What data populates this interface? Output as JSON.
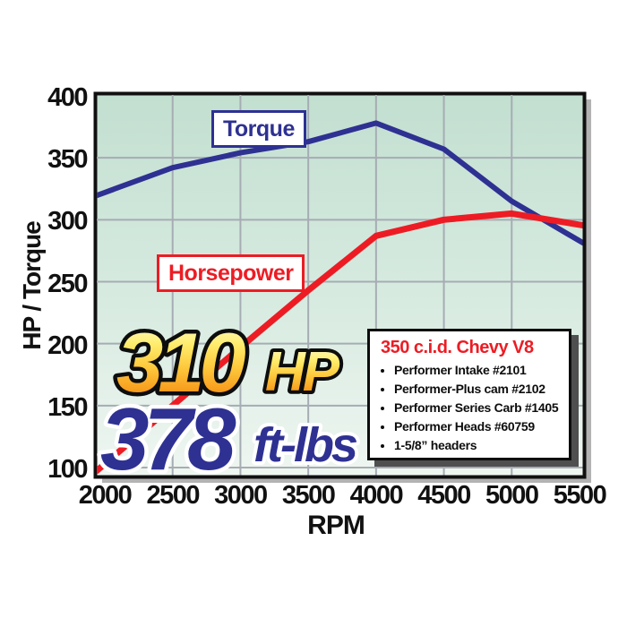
{
  "chart_data": {
    "type": "line",
    "title": "",
    "xlabel": "RPM",
    "ylabel": "HP / Torque",
    "x": [
      2000,
      2500,
      3000,
      3500,
      4000,
      4500,
      5000,
      5500
    ],
    "x_ticks": [
      "2000",
      "2500",
      "3000",
      "3500",
      "4000",
      "4500",
      "5000",
      "5500"
    ],
    "y_ticks": [
      "100",
      "150",
      "200",
      "250",
      "300",
      "350",
      "400"
    ],
    "xlim": [
      2000,
      5500
    ],
    "ylim": [
      100,
      400
    ],
    "grid": true,
    "grid_x": [
      2500,
      3000,
      3500,
      4000,
      4500,
      5000
    ],
    "grid_y": [
      100,
      150,
      200,
      250,
      300,
      350
    ],
    "legend_position": "inline-labels",
    "plot_bg_gradient": [
      "#c2dfd0",
      "#d8ebe1",
      "#eff6f1"
    ],
    "gridline_color": "#a6acb3",
    "series": [
      {
        "name": "Torque",
        "unit": "ft-lbs",
        "color": "#2e3192",
        "values": [
          322,
          342,
          354,
          363,
          378,
          357,
          315,
          283
        ]
      },
      {
        "name": "Horsepower",
        "unit": "HP",
        "color": "#ed1c24",
        "values": [
          103,
          150,
          197,
          243,
          287,
          300,
          305,
          296
        ]
      }
    ]
  },
  "callouts": {
    "hp_value": "310",
    "hp_unit": "HP",
    "hp_gradient": [
      "#fffde8",
      "#ffee6e",
      "#fdc93d",
      "#f89c1c",
      "#f4831f"
    ],
    "torque_value": "378",
    "torque_unit": "ft-lbs",
    "torque_color": "#2e3192"
  },
  "specs": {
    "title": "350 c.i.d. Chevy V8",
    "title_color": "#ed1c24",
    "items": [
      "Performer Intake #2101",
      "Performer-Plus cam #2102",
      "Performer Series Carb #1405",
      "Performer Heads #60759",
      "1-5/8” headers"
    ]
  }
}
